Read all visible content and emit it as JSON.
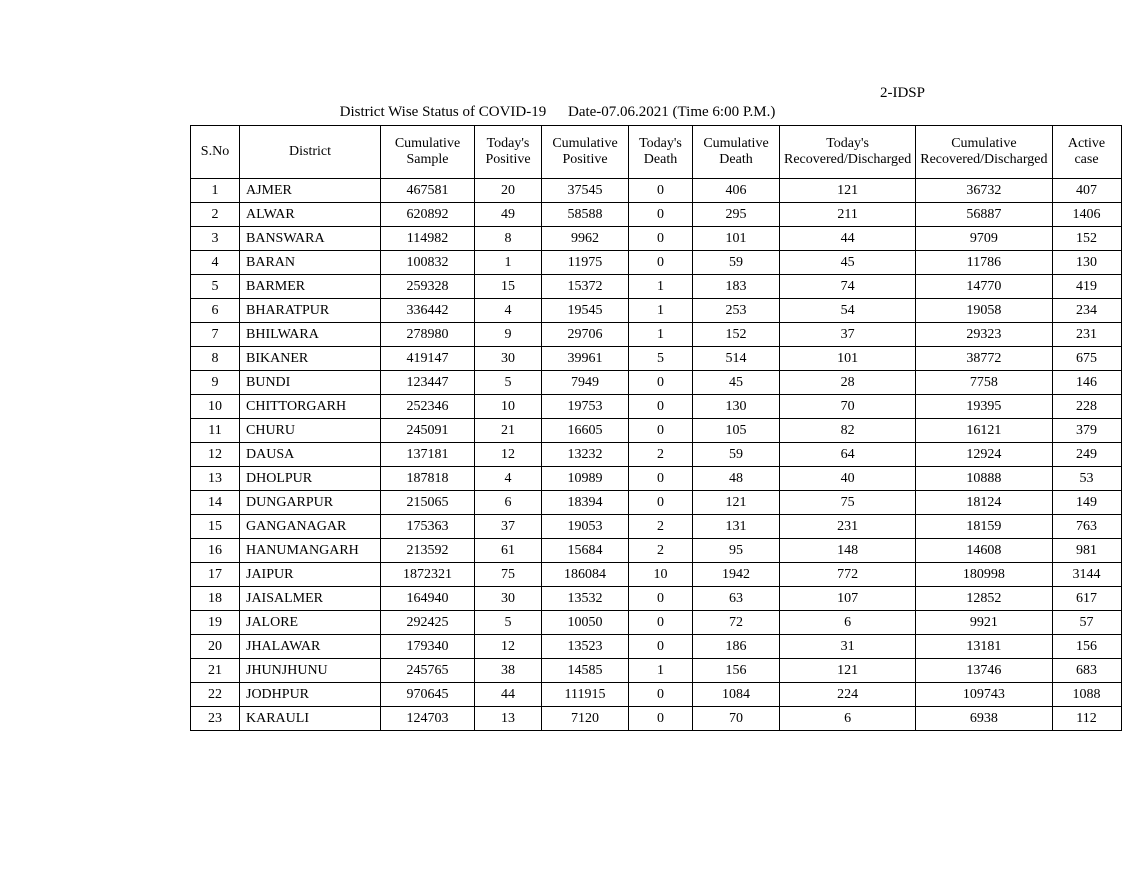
{
  "header_label": "2-IDSP",
  "title": "District Wise Status of  COVID-19",
  "date_text": "Date-07.06.2021 (Time 6:00 P.M.)",
  "columns": [
    {
      "label": "S.No",
      "class": "col-sno"
    },
    {
      "label": "District",
      "class": "col-district"
    },
    {
      "label": "Cumulative Sample",
      "class": "col-cumsample"
    },
    {
      "label": "Today's Positive",
      "class": "col-todaypos"
    },
    {
      "label": "Cumulative Positive",
      "class": "col-cumpos"
    },
    {
      "label": "Today's Death",
      "class": "col-todaydeath"
    },
    {
      "label": "Cumulative Death",
      "class": "col-cumdeath"
    },
    {
      "label": "Today's Recovered/Discharged",
      "class": "col-todayrec"
    },
    {
      "label": "Cumulative Recovered/Discharged",
      "class": "col-cumrec"
    },
    {
      "label": "Active case",
      "class": "col-active"
    }
  ],
  "rows": [
    {
      "sno": "1",
      "district": "AJMER",
      "cum_sample": "467581",
      "today_pos": "20",
      "cum_pos": "37545",
      "today_death": "0",
      "cum_death": "406",
      "today_rec": "121",
      "cum_rec": "36732",
      "active": "407"
    },
    {
      "sno": "2",
      "district": "ALWAR",
      "cum_sample": "620892",
      "today_pos": "49",
      "cum_pos": "58588",
      "today_death": "0",
      "cum_death": "295",
      "today_rec": "211",
      "cum_rec": "56887",
      "active": "1406"
    },
    {
      "sno": "3",
      "district": "BANSWARA",
      "cum_sample": "114982",
      "today_pos": "8",
      "cum_pos": "9962",
      "today_death": "0",
      "cum_death": "101",
      "today_rec": "44",
      "cum_rec": "9709",
      "active": "152"
    },
    {
      "sno": "4",
      "district": "BARAN",
      "cum_sample": "100832",
      "today_pos": "1",
      "cum_pos": "11975",
      "today_death": "0",
      "cum_death": "59",
      "today_rec": "45",
      "cum_rec": "11786",
      "active": "130"
    },
    {
      "sno": "5",
      "district": "BARMER",
      "cum_sample": "259328",
      "today_pos": "15",
      "cum_pos": "15372",
      "today_death": "1",
      "cum_death": "183",
      "today_rec": "74",
      "cum_rec": "14770",
      "active": "419"
    },
    {
      "sno": "6",
      "district": "BHARATPUR",
      "cum_sample": "336442",
      "today_pos": "4",
      "cum_pos": "19545",
      "today_death": "1",
      "cum_death": "253",
      "today_rec": "54",
      "cum_rec": "19058",
      "active": "234"
    },
    {
      "sno": "7",
      "district": "BHILWARA",
      "cum_sample": "278980",
      "today_pos": "9",
      "cum_pos": "29706",
      "today_death": "1",
      "cum_death": "152",
      "today_rec": "37",
      "cum_rec": "29323",
      "active": "231"
    },
    {
      "sno": "8",
      "district": "BIKANER",
      "cum_sample": "419147",
      "today_pos": "30",
      "cum_pos": "39961",
      "today_death": "5",
      "cum_death": "514",
      "today_rec": "101",
      "cum_rec": "38772",
      "active": "675"
    },
    {
      "sno": "9",
      "district": "BUNDI",
      "cum_sample": "123447",
      "today_pos": "5",
      "cum_pos": "7949",
      "today_death": "0",
      "cum_death": "45",
      "today_rec": "28",
      "cum_rec": "7758",
      "active": "146"
    },
    {
      "sno": "10",
      "district": "CHITTORGARH",
      "cum_sample": "252346",
      "today_pos": "10",
      "cum_pos": "19753",
      "today_death": "0",
      "cum_death": "130",
      "today_rec": "70",
      "cum_rec": "19395",
      "active": "228"
    },
    {
      "sno": "11",
      "district": "CHURU",
      "cum_sample": "245091",
      "today_pos": "21",
      "cum_pos": "16605",
      "today_death": "0",
      "cum_death": "105",
      "today_rec": "82",
      "cum_rec": "16121",
      "active": "379"
    },
    {
      "sno": "12",
      "district": "DAUSA",
      "cum_sample": "137181",
      "today_pos": "12",
      "cum_pos": "13232",
      "today_death": "2",
      "cum_death": "59",
      "today_rec": "64",
      "cum_rec": "12924",
      "active": "249"
    },
    {
      "sno": "13",
      "district": "DHOLPUR",
      "cum_sample": "187818",
      "today_pos": "4",
      "cum_pos": "10989",
      "today_death": "0",
      "cum_death": "48",
      "today_rec": "40",
      "cum_rec": "10888",
      "active": "53"
    },
    {
      "sno": "14",
      "district": "DUNGARPUR",
      "cum_sample": "215065",
      "today_pos": "6",
      "cum_pos": "18394",
      "today_death": "0",
      "cum_death": "121",
      "today_rec": "75",
      "cum_rec": "18124",
      "active": "149"
    },
    {
      "sno": "15",
      "district": "GANGANAGAR",
      "cum_sample": "175363",
      "today_pos": "37",
      "cum_pos": "19053",
      "today_death": "2",
      "cum_death": "131",
      "today_rec": "231",
      "cum_rec": "18159",
      "active": "763"
    },
    {
      "sno": "16",
      "district": "HANUMANGARH",
      "cum_sample": "213592",
      "today_pos": "61",
      "cum_pos": "15684",
      "today_death": "2",
      "cum_death": "95",
      "today_rec": "148",
      "cum_rec": "14608",
      "active": "981"
    },
    {
      "sno": "17",
      "district": "JAIPUR",
      "cum_sample": "1872321",
      "today_pos": "75",
      "cum_pos": "186084",
      "today_death": "10",
      "cum_death": "1942",
      "today_rec": "772",
      "cum_rec": "180998",
      "active": "3144"
    },
    {
      "sno": "18",
      "district": "JAISALMER",
      "cum_sample": "164940",
      "today_pos": "30",
      "cum_pos": "13532",
      "today_death": "0",
      "cum_death": "63",
      "today_rec": "107",
      "cum_rec": "12852",
      "active": "617"
    },
    {
      "sno": "19",
      "district": "JALORE",
      "cum_sample": "292425",
      "today_pos": "5",
      "cum_pos": "10050",
      "today_death": "0",
      "cum_death": "72",
      "today_rec": "6",
      "cum_rec": "9921",
      "active": "57"
    },
    {
      "sno": "20",
      "district": "JHALAWAR",
      "cum_sample": "179340",
      "today_pos": "12",
      "cum_pos": "13523",
      "today_death": "0",
      "cum_death": "186",
      "today_rec": "31",
      "cum_rec": "13181",
      "active": "156"
    },
    {
      "sno": "21",
      "district": "JHUNJHUNU",
      "cum_sample": "245765",
      "today_pos": "38",
      "cum_pos": "14585",
      "today_death": "1",
      "cum_death": "156",
      "today_rec": "121",
      "cum_rec": "13746",
      "active": "683"
    },
    {
      "sno": "22",
      "district": "JODHPUR",
      "cum_sample": "970645",
      "today_pos": "44",
      "cum_pos": "111915",
      "today_death": "0",
      "cum_death": "1084",
      "today_rec": "224",
      "cum_rec": "109743",
      "active": "1088"
    },
    {
      "sno": "23",
      "district": "KARAULI",
      "cum_sample": "124703",
      "today_pos": "13",
      "cum_pos": "7120",
      "today_death": "0",
      "cum_death": "70",
      "today_rec": "6",
      "cum_rec": "6938",
      "active": "112"
    }
  ],
  "style": {
    "background_color": "#ffffff",
    "border_color": "#000000",
    "font_family": "Times New Roman",
    "title_fontsize": 15,
    "header_fontsize": 14,
    "cell_fontsize": 14
  }
}
